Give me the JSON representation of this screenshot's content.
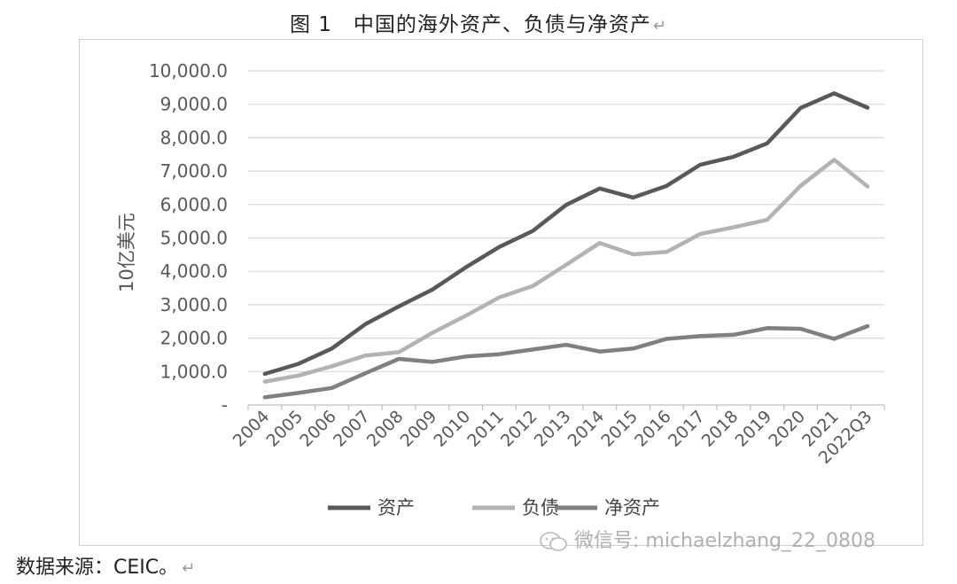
{
  "figure_title": "图 1　中国的海外资产、负债与净资产",
  "return_mark": "↵",
  "source": "数据来源：CEIC。",
  "watermark": "微信号: michaelzhang_22_0808",
  "colors": {
    "资产": "#595959",
    "负债": "#b3b3b3",
    "净资产": "#808080",
    "grid": "#d9d9d9",
    "axis": "#bfbfbf"
  },
  "chart_data": {
    "type": "line",
    "title": "",
    "xlabel": "",
    "ylabel": "10亿美元",
    "ylim": [
      0,
      10000
    ],
    "yticks": [
      0,
      1000,
      2000,
      3000,
      4000,
      5000,
      6000,
      7000,
      8000,
      9000,
      10000
    ],
    "ytick_labels": [
      "-",
      "1,000.0",
      "2,000.0",
      "3,000.0",
      "4,000.0",
      "5,000.0",
      "6,000.0",
      "7,000.0",
      "8,000.0",
      "9,000.0",
      "10,000.0"
    ],
    "grid": true,
    "legend_position": "bottom",
    "categories": [
      "2004",
      "2005",
      "2006",
      "2007",
      "2008",
      "2009",
      "2010",
      "2011",
      "2012",
      "2013",
      "2014",
      "2015",
      "2016",
      "2017",
      "2018",
      "2019",
      "2020",
      "2021",
      "2022Q3"
    ],
    "series": [
      {
        "name": "资产",
        "values": [
          930,
          1230,
          1690,
          2420,
          2950,
          3450,
          4120,
          4730,
          5210,
          5990,
          6480,
          6210,
          6560,
          7190,
          7430,
          7830,
          8890,
          9330,
          8900
        ]
      },
      {
        "name": "负债",
        "values": [
          700,
          880,
          1160,
          1480,
          1580,
          2160,
          2670,
          3220,
          3560,
          4200,
          4850,
          4510,
          4580,
          5120,
          5320,
          5540,
          6560,
          7340,
          6540
        ]
      },
      {
        "name": "净资产",
        "values": [
          230,
          360,
          510,
          950,
          1380,
          1290,
          1450,
          1520,
          1660,
          1800,
          1600,
          1690,
          1980,
          2060,
          2100,
          2300,
          2280,
          1980,
          2360
        ]
      }
    ]
  }
}
